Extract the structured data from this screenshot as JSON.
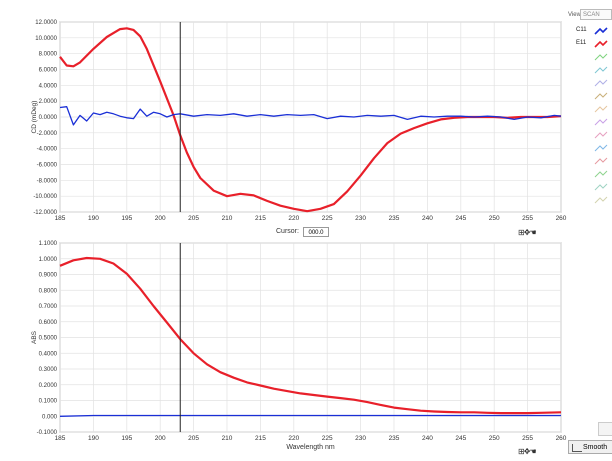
{
  "colors": {
    "series_red": "#e8202a",
    "series_blue": "#1a2fd6",
    "grid": "#e2e2e2",
    "cursor": "#222222"
  },
  "view": {
    "label": "View:",
    "value": "SCAN"
  },
  "legend": [
    {
      "label": "C11",
      "color": "#1a2fd6",
      "icon": "line-swatch-icon"
    },
    {
      "label": "E11",
      "color": "#e8202a",
      "icon": "line-swatch-icon"
    },
    {
      "label": "",
      "color": "#7fd37f",
      "icon": "line-swatch-icon"
    },
    {
      "label": "",
      "color": "#7fc7d3",
      "icon": "line-swatch-icon"
    },
    {
      "label": "",
      "color": "#b0b0e6",
      "icon": "line-swatch-icon"
    },
    {
      "label": "",
      "color": "#c9b07a",
      "icon": "line-swatch-icon"
    },
    {
      "label": "",
      "color": "#e6c6a0",
      "icon": "line-swatch-icon"
    },
    {
      "label": "",
      "color": "#c8a0e6",
      "icon": "line-swatch-icon"
    },
    {
      "label": "",
      "color": "#e6a0c0",
      "icon": "line-swatch-icon"
    },
    {
      "label": "",
      "color": "#7fb7e6",
      "icon": "line-swatch-icon"
    },
    {
      "label": "",
      "color": "#e69aa0",
      "icon": "line-swatch-icon"
    },
    {
      "label": "",
      "color": "#8fd38f",
      "icon": "line-swatch-icon"
    },
    {
      "label": "",
      "color": "#9fd3c3",
      "icon": "line-swatch-icon"
    },
    {
      "label": "",
      "color": "#d3d3b0",
      "icon": "line-swatch-icon"
    }
  ],
  "cursor": {
    "label": "Cursor:",
    "value": "000.0",
    "x": 203
  },
  "smooth_label": "Smooth",
  "tools_icons": "graph-tools-icon",
  "chart_data": [
    {
      "type": "line",
      "ylabel": "CD (mDeg)",
      "xlabel": "",
      "xlim": [
        185,
        260
      ],
      "ylim": [
        -12,
        12
      ],
      "xticks": [
        185,
        190,
        195,
        200,
        205,
        210,
        215,
        220,
        225,
        230,
        235,
        240,
        245,
        250,
        255,
        260
      ],
      "xtick_labels": [
        "185",
        "190",
        "195",
        "200",
        "205",
        "210",
        "215",
        "220",
        "225",
        "230",
        "235",
        "240",
        "245",
        "250",
        "255",
        "260"
      ],
      "yticks": [
        12,
        10,
        8,
        6,
        4,
        2,
        0,
        -2,
        -4,
        -6,
        -8,
        -10,
        -12
      ],
      "ytick_labels": [
        "12.0000",
        "10.0000",
        "8.0000",
        "6.0000",
        "4.0000",
        "2.0000",
        "0.0000",
        "-2.0000",
        "-4.0000",
        "-6.0000",
        "-8.0000",
        "-10.0000",
        "-12.0000"
      ],
      "series": [
        {
          "name": "E11",
          "color": "#e8202a",
          "x": [
            185,
            186,
            187,
            188,
            190,
            192,
            194,
            195,
            196,
            197,
            198,
            200,
            202,
            203,
            204,
            205,
            206,
            208,
            210,
            212,
            214,
            216,
            218,
            220,
            222,
            224,
            226,
            228,
            230,
            232,
            234,
            236,
            238,
            240,
            242,
            244,
            246,
            248,
            250,
            252,
            254,
            256,
            258,
            260
          ],
          "y": [
            7.6,
            6.5,
            6.4,
            6.9,
            8.6,
            10.1,
            11.1,
            11.2,
            11.0,
            10.2,
            8.6,
            4.5,
            0.2,
            -2.3,
            -4.5,
            -6.3,
            -7.7,
            -9.3,
            -10.0,
            -9.7,
            -9.9,
            -10.6,
            -11.2,
            -11.6,
            -11.9,
            -11.6,
            -11.0,
            -9.4,
            -7.4,
            -5.2,
            -3.3,
            -2.1,
            -1.4,
            -0.8,
            -0.3,
            -0.1,
            0.0,
            0.0,
            0.0,
            -0.1,
            0.0,
            0.0,
            0.0,
            0.1
          ]
        },
        {
          "name": "C11",
          "color": "#1a2fd6",
          "x": [
            185,
            186,
            187,
            188,
            189,
            190,
            191,
            192,
            193,
            194,
            195,
            196,
            197,
            198,
            199,
            200,
            201,
            202,
            203,
            205,
            207,
            209,
            211,
            213,
            215,
            217,
            219,
            221,
            223,
            225,
            227,
            229,
            231,
            233,
            235,
            237,
            239,
            241,
            243,
            245,
            247,
            249,
            251,
            253,
            255,
            257,
            259,
            260
          ],
          "y": [
            1.2,
            1.3,
            -1.0,
            0.2,
            -0.5,
            0.5,
            0.3,
            0.6,
            0.4,
            0.1,
            -0.1,
            -0.2,
            1.0,
            0.1,
            0.6,
            0.4,
            0.0,
            0.3,
            0.4,
            0.1,
            0.3,
            0.2,
            0.4,
            0.1,
            0.3,
            0.1,
            0.3,
            0.2,
            0.3,
            -0.2,
            0.1,
            0.0,
            0.2,
            0.1,
            0.2,
            -0.3,
            0.1,
            0.0,
            0.1,
            0.1,
            0.0,
            0.1,
            0.0,
            -0.3,
            0.0,
            -0.1,
            0.2,
            0.1
          ]
        }
      ]
    },
    {
      "type": "line",
      "ylabel": "ABS",
      "xlabel": "Wavelength nm",
      "xlim": [
        185,
        260
      ],
      "ylim": [
        -0.1,
        1.1
      ],
      "xticks": [
        185,
        190,
        195,
        200,
        205,
        210,
        215,
        220,
        225,
        230,
        235,
        240,
        245,
        250,
        255,
        260
      ],
      "xtick_labels": [
        "185",
        "190",
        "195",
        "200",
        "205",
        "210",
        "215",
        "220",
        "225",
        "230",
        "235",
        "240",
        "245",
        "250",
        "255",
        "260"
      ],
      "yticks": [
        1.1,
        1.0,
        0.9,
        0.8,
        0.7,
        0.6,
        0.5,
        0.4,
        0.3,
        0.2,
        0.1,
        0.0,
        -0.1
      ],
      "ytick_labels": [
        "1.1000",
        "1.0000",
        "0.9000",
        "0.8000",
        "0.7000",
        "0.6000",
        "0.5000",
        "0.4000",
        "0.3000",
        "0.2000",
        "0.1000",
        "0.000",
        "-0.1000"
      ],
      "series": [
        {
          "name": "E11",
          "color": "#e8202a",
          "x": [
            185,
            187,
            189,
            191,
            193,
            195,
            197,
            199,
            201,
            203,
            205,
            207,
            209,
            211,
            213,
            215,
            217,
            219,
            221,
            223,
            225,
            227,
            229,
            231,
            233,
            235,
            237,
            239,
            241,
            243,
            245,
            247,
            249,
            251,
            253,
            255,
            257,
            260
          ],
          "y": [
            0.955,
            0.99,
            1.005,
            1.0,
            0.97,
            0.905,
            0.81,
            0.7,
            0.595,
            0.49,
            0.4,
            0.33,
            0.28,
            0.245,
            0.215,
            0.195,
            0.175,
            0.16,
            0.145,
            0.135,
            0.125,
            0.115,
            0.105,
            0.09,
            0.072,
            0.055,
            0.045,
            0.035,
            0.03,
            0.027,
            0.025,
            0.025,
            0.022,
            0.02,
            0.02,
            0.02,
            0.022,
            0.025
          ]
        },
        {
          "name": "C11",
          "color": "#1a2fd6",
          "x": [
            185,
            190,
            200,
            210,
            220,
            230,
            240,
            250,
            260
          ],
          "y": [
            0.0,
            0.005,
            0.005,
            0.005,
            0.005,
            0.005,
            0.005,
            0.005,
            0.005
          ]
        }
      ]
    }
  ]
}
